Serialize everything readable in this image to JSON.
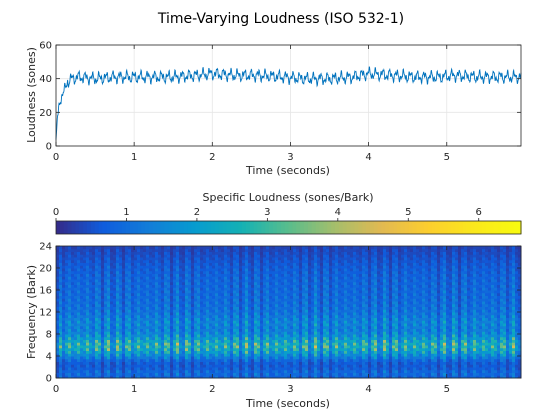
{
  "figure": {
    "title": "Time-Varying Loudness (ISO 532-1)"
  },
  "chart_data": [
    {
      "type": "line",
      "xlabel": "Time (seconds)",
      "ylabel": "Loudness (sones)",
      "xlim": [
        0,
        5.95
      ],
      "ylim": [
        0,
        60
      ],
      "xticks": [
        0,
        1,
        2,
        3,
        4,
        5
      ],
      "yticks": [
        0,
        20,
        40,
        60
      ],
      "grid": true,
      "line_color": "#0072BD",
      "series": [
        {
          "x": [
            0,
            0.02,
            0.05,
            0.08,
            0.1,
            0.12,
            0.15,
            0.18,
            0.2,
            0.3,
            0.5,
            0.75,
            0.9,
            1.2,
            1.5,
            1.8,
            2.0,
            2.3,
            2.6,
            2.9,
            3.2,
            3.5,
            3.8,
            4.0,
            4.3,
            4.6,
            4.9,
            5.1,
            5.4,
            5.7,
            5.95
          ],
          "y": [
            2,
            18,
            26,
            30,
            33,
            35,
            38,
            39,
            40,
            41,
            40,
            41,
            41,
            41,
            41,
            42,
            43,
            42,
            42,
            41,
            40,
            40,
            41,
            43,
            42,
            41,
            41,
            42,
            41,
            41,
            41
          ]
        }
      ]
    },
    {
      "type": "heatmap",
      "xlabel": "Time (seconds)",
      "ylabel": "Frequency (Bark)",
      "xlim": [
        0,
        5.95
      ],
      "ylim": [
        0,
        24
      ],
      "xticks": [
        0,
        1,
        2,
        3,
        4,
        5
      ],
      "yticks": [
        0,
        4,
        8,
        12,
        16,
        20,
        24
      ],
      "colorbar": {
        "label": "Specific Loudness (sones/Bark)",
        "range": [
          0,
          6.6
        ],
        "ticks": [
          0,
          1,
          2,
          3,
          4,
          5,
          6
        ],
        "colormap": "parula",
        "placement": "top"
      },
      "bark_profile": {
        "bark": [
          0,
          1,
          2,
          3,
          4,
          5,
          6,
          7,
          8,
          9,
          10,
          11,
          12,
          13,
          14,
          16,
          18,
          20,
          22,
          24
        ],
        "mean_specific_loudness": [
          1.2,
          1.5,
          1.0,
          1.1,
          2.2,
          3.4,
          4.0,
          3.2,
          2.4,
          2.0,
          2.3,
          2.0,
          1.7,
          1.6,
          1.5,
          1.4,
          1.3,
          1.1,
          0.8,
          0.5
        ]
      }
    }
  ]
}
